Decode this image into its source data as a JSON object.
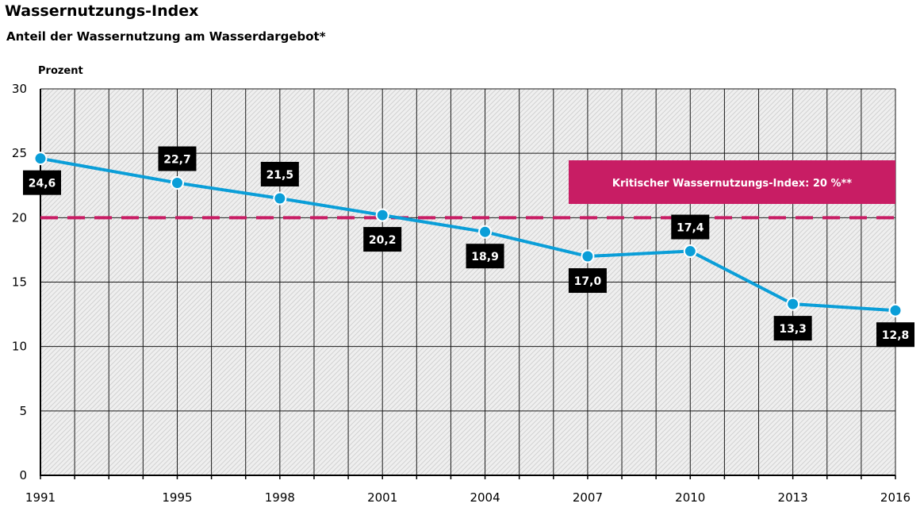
{
  "chart_data": {
    "type": "line",
    "title": "Wassernutzungs-Index",
    "subtitle": "Anteil der Wassernutzung am Wasserdargebot*",
    "ylabel": "Prozent",
    "xlabel": "",
    "ylim": [
      0,
      30
    ],
    "yticks": [
      "0",
      "5",
      "10",
      "15",
      "20",
      "25",
      "30"
    ],
    "x_range": [
      1991,
      2016
    ],
    "series": [
      {
        "name": "Wassernutzungs-Index",
        "color": "#0a9ed8",
        "points": [
          {
            "x": 1991,
            "y": 24.6,
            "label": "24,6"
          },
          {
            "x": 1995,
            "y": 22.7,
            "label": "22,7"
          },
          {
            "x": 1998,
            "y": 21.5,
            "label": "21,5"
          },
          {
            "x": 2001,
            "y": 20.2,
            "label": "20,2"
          },
          {
            "x": 2004,
            "y": 18.9,
            "label": "18,9"
          },
          {
            "x": 2007,
            "y": 17.0,
            "label": "17,0"
          },
          {
            "x": 2010,
            "y": 17.4,
            "label": "17,4"
          },
          {
            "x": 2013,
            "y": 13.3,
            "label": "13,3"
          },
          {
            "x": 2016,
            "y": 12.8,
            "label": "12,8"
          }
        ]
      }
    ],
    "reference_line": {
      "value": 20,
      "label": "Kritischer Wassernutzungs-Index: 20 %**",
      "color": "#c81d64"
    },
    "x_labels": [
      "1991",
      "1995",
      "1998",
      "2001",
      "2004",
      "2007",
      "2010",
      "2013",
      "2016"
    ],
    "grid": true
  }
}
